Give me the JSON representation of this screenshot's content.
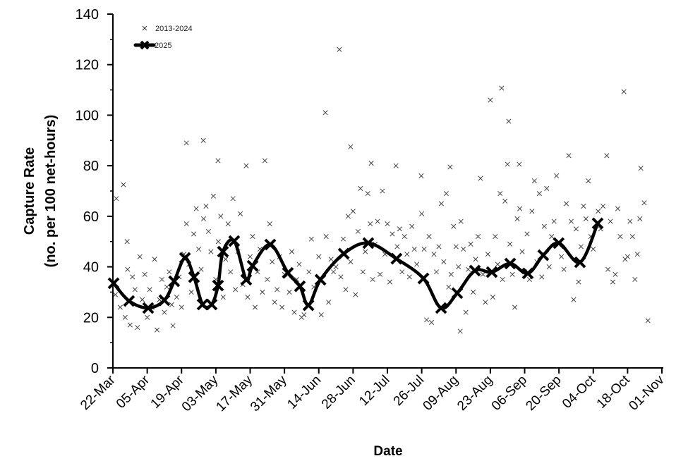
{
  "chart_data": {
    "type": "scatter",
    "title": "",
    "xlabel": "Date",
    "ylabel_line1": "Capture Rate",
    "ylabel_line2": "(no. per 100 net-hours)",
    "xlim_days": [
      0,
      224
    ],
    "ylim": [
      0,
      140
    ],
    "yticks": [
      0,
      20,
      40,
      60,
      80,
      100,
      120,
      140
    ],
    "xtick_labels": [
      "22-Mar",
      "05-Apr",
      "19-Apr",
      "03-May",
      "17-May",
      "31-May",
      "14-Jun",
      "28-Jun",
      "12-Jul",
      "26-Jul",
      "09-Aug",
      "23-Aug",
      "06-Sep",
      "20-Sep",
      "04-Oct",
      "18-Oct",
      "01-Nov"
    ],
    "x_units": "days since 22-Mar",
    "grid": false,
    "legend_position": "top-left",
    "series": [
      {
        "name": "2013-2024",
        "style": "markers",
        "points": [
          [
            1.4,
            67
          ],
          [
            4.3,
            72.5
          ],
          [
            5.8,
            50
          ],
          [
            30,
            89
          ],
          [
            36.9,
            90
          ],
          [
            42.9,
            82
          ],
          [
            54.4,
            80
          ],
          [
            62,
            82
          ],
          [
            86.7,
            101
          ],
          [
            92.4,
            126
          ],
          [
            97,
            87.5
          ],
          [
            105.4,
            81
          ],
          [
            115.5,
            80
          ],
          [
            125.8,
            76
          ],
          [
            137.6,
            79.5
          ],
          [
            154,
            106
          ],
          [
            158.6,
            110.7
          ],
          [
            161.5,
            97.6
          ],
          [
            161,
            80.6
          ],
          [
            165.8,
            80.6
          ],
          [
            186,
            84
          ],
          [
            201.5,
            84
          ],
          [
            208.5,
            109.3
          ],
          [
            215.4,
            79
          ],
          [
            218.3,
            18.7
          ],
          [
            216.8,
            65.3
          ],
          [
            141.7,
            14.5
          ],
          [
            18,
            15
          ],
          [
            24.5,
            16.7
          ],
          [
            1,
            29
          ],
          [
            3,
            24
          ],
          [
            5,
            20
          ],
          [
            6,
            39
          ],
          [
            7,
            17
          ],
          [
            8,
            36
          ],
          [
            9,
            31
          ],
          [
            10,
            16
          ],
          [
            11,
            44
          ],
          [
            12,
            27
          ],
          [
            13,
            37
          ],
          [
            14,
            20
          ],
          [
            15,
            31
          ],
          [
            16,
            24
          ],
          [
            17,
            43
          ],
          [
            19,
            27
          ],
          [
            20,
            35
          ],
          [
            21,
            22
          ],
          [
            22,
            32
          ],
          [
            23,
            38
          ],
          [
            24,
            25
          ],
          [
            26,
            28
          ],
          [
            27,
            36
          ],
          [
            28,
            24
          ],
          [
            29,
            45
          ],
          [
            30,
            57
          ],
          [
            31,
            41
          ],
          [
            32,
            30
          ],
          [
            33,
            53
          ],
          [
            34,
            63
          ],
          [
            35,
            47
          ],
          [
            36,
            39
          ],
          [
            37,
            59
          ],
          [
            38,
            64
          ],
          [
            39,
            54
          ],
          [
            40,
            46
          ],
          [
            41,
            68
          ],
          [
            42,
            35
          ],
          [
            43,
            50
          ],
          [
            44,
            60
          ],
          [
            45,
            28
          ],
          [
            46,
            43
          ],
          [
            47,
            57
          ],
          [
            48,
            38
          ],
          [
            49,
            67
          ],
          [
            50,
            31
          ],
          [
            51,
            46
          ],
          [
            52,
            61
          ],
          [
            53,
            33
          ],
          [
            55,
            28
          ],
          [
            56,
            44
          ],
          [
            57,
            52
          ],
          [
            58,
            24
          ],
          [
            59,
            38
          ],
          [
            60,
            47
          ],
          [
            61,
            30
          ],
          [
            63,
            35
          ],
          [
            64,
            57
          ],
          [
            65,
            42
          ],
          [
            66,
            26
          ],
          [
            67,
            31
          ],
          [
            68,
            44
          ],
          [
            69,
            24
          ],
          [
            70,
            37
          ],
          [
            72,
            30
          ],
          [
            73,
            46
          ],
          [
            74,
            22
          ],
          [
            75,
            35
          ],
          [
            76,
            41
          ],
          [
            77,
            20
          ],
          [
            78,
            21
          ],
          [
            80,
            38
          ],
          [
            81,
            51
          ],
          [
            82,
            32
          ],
          [
            84,
            44
          ],
          [
            85,
            21
          ],
          [
            87,
            52
          ],
          [
            88,
            26
          ],
          [
            89,
            43
          ],
          [
            90,
            38
          ],
          [
            91,
            40
          ],
          [
            93,
            36
          ],
          [
            94,
            51
          ],
          [
            95,
            31
          ],
          [
            96,
            60
          ],
          [
            97,
            42
          ],
          [
            98,
            62
          ],
          [
            99,
            29
          ],
          [
            100,
            54
          ],
          [
            101,
            71
          ],
          [
            102,
            38
          ],
          [
            103,
            46
          ],
          [
            104,
            69
          ],
          [
            105,
            57
          ],
          [
            106,
            35
          ],
          [
            107,
            49
          ],
          [
            108,
            58
          ],
          [
            109,
            37
          ],
          [
            110,
            70
          ],
          [
            111,
            45
          ],
          [
            112,
            57
          ],
          [
            113,
            34
          ],
          [
            114,
            53
          ],
          [
            116,
            48
          ],
          [
            117,
            55
          ],
          [
            118,
            38
          ],
          [
            119,
            52
          ],
          [
            120,
            45
          ],
          [
            121,
            36
          ],
          [
            122,
            56
          ],
          [
            123,
            47
          ],
          [
            124,
            41
          ],
          [
            126,
            61
          ],
          [
            127,
            47
          ],
          [
            128,
            19
          ],
          [
            129,
            52
          ],
          [
            130,
            18
          ],
          [
            131,
            45
          ],
          [
            132,
            38
          ],
          [
            133,
            48
          ],
          [
            134,
            65
          ],
          [
            135,
            42
          ],
          [
            136,
            69
          ],
          [
            137,
            32
          ],
          [
            138,
            37
          ],
          [
            139,
            56
          ],
          [
            140,
            48
          ],
          [
            141,
            40
          ],
          [
            142,
            58
          ],
          [
            143,
            47
          ],
          [
            144,
            22
          ],
          [
            145,
            39
          ],
          [
            146,
            49
          ],
          [
            147,
            30
          ],
          [
            148,
            43
          ],
          [
            149,
            52
          ],
          [
            150,
            75
          ],
          [
            151,
            37
          ],
          [
            152,
            26
          ],
          [
            153,
            45
          ],
          [
            155,
            28
          ],
          [
            156,
            52
          ],
          [
            157,
            41
          ],
          [
            158,
            69
          ],
          [
            159,
            35
          ],
          [
            160,
            66
          ],
          [
            162,
            49
          ],
          [
            163,
            37
          ],
          [
            164,
            24
          ],
          [
            165,
            59
          ],
          [
            166,
            63
          ],
          [
            167,
            46
          ],
          [
            168,
            38
          ],
          [
            169,
            53
          ],
          [
            170,
            35
          ],
          [
            171,
            62
          ],
          [
            172,
            74
          ],
          [
            173,
            42
          ],
          [
            174,
            69
          ],
          [
            175,
            36
          ],
          [
            176,
            56
          ],
          [
            177,
            71
          ],
          [
            178,
            40
          ],
          [
            179,
            52
          ],
          [
            180,
            58
          ],
          [
            181,
            76
          ],
          [
            183,
            44
          ],
          [
            184,
            39
          ],
          [
            185,
            65
          ],
          [
            187,
            58
          ],
          [
            188,
            27
          ],
          [
            189,
            55
          ],
          [
            190,
            34
          ],
          [
            191,
            48
          ],
          [
            192,
            64
          ],
          [
            193,
            59
          ],
          [
            194,
            74
          ],
          [
            195,
            52
          ],
          [
            196,
            47
          ],
          [
            198,
            62
          ],
          [
            199,
            55
          ],
          [
            200,
            64
          ],
          [
            202,
            39
          ],
          [
            203,
            58
          ],
          [
            204,
            34
          ],
          [
            205,
            37
          ],
          [
            206,
            63
          ],
          [
            207,
            52
          ],
          [
            209,
            43
          ],
          [
            210,
            44
          ],
          [
            211,
            58
          ],
          [
            212,
            52
          ],
          [
            213,
            35
          ],
          [
            214,
            45
          ],
          [
            215,
            59
          ]
        ]
      },
      {
        "name": "2025",
        "style": "smooth-line-markers",
        "points": [
          [
            0.3,
            33.5
          ],
          [
            6.6,
            26.5
          ],
          [
            14.4,
            23.7
          ],
          [
            21,
            26.8
          ],
          [
            25,
            34.3
          ],
          [
            29.4,
            43.5
          ],
          [
            33.1,
            35.9
          ],
          [
            36.6,
            25.1
          ],
          [
            40.3,
            25.1
          ],
          [
            42.9,
            32.6
          ],
          [
            44.9,
            46
          ],
          [
            49.5,
            50.2
          ],
          [
            54.4,
            34.9
          ],
          [
            57,
            40.4
          ],
          [
            64.2,
            48.8
          ],
          [
            71.4,
            37.6
          ],
          [
            76.3,
            32.3
          ],
          [
            79.8,
            24.8
          ],
          [
            84.7,
            34.9
          ],
          [
            94.2,
            45.2
          ],
          [
            104.2,
            49.4
          ],
          [
            115.7,
            43.2
          ],
          [
            126.7,
            35.4
          ],
          [
            133.9,
            23.7
          ],
          [
            140.5,
            29.6
          ],
          [
            147.7,
            38.5
          ],
          [
            154.6,
            37.9
          ],
          [
            162.1,
            41.3
          ],
          [
            169.3,
            37.4
          ],
          [
            175.6,
            44.6
          ],
          [
            181.9,
            49.4
          ],
          [
            190.6,
            41.8
          ],
          [
            197.8,
            57.2
          ]
        ]
      }
    ]
  }
}
